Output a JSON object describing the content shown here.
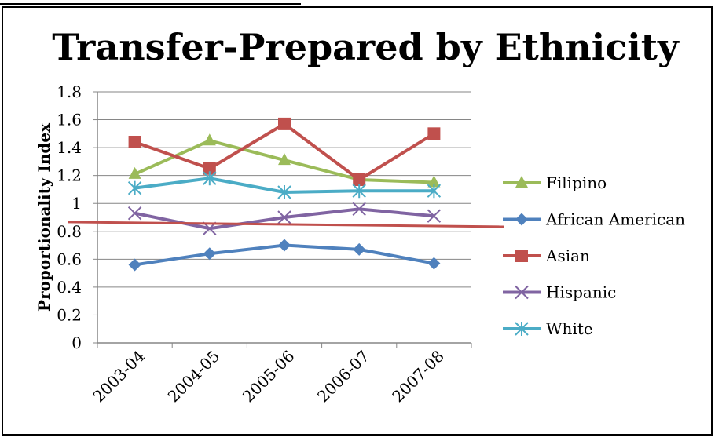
{
  "chart_data": {
    "type": "line",
    "title": "Transfer-Prepared by Ethnicity",
    "xlabel": "",
    "ylabel": "Proportionality Index",
    "categories": [
      "2003-04",
      "2004-05",
      "2005-06",
      "2006-07",
      "2007-08"
    ],
    "yticks": [
      "0",
      "0.2",
      "0.4",
      "0.6",
      "0.8",
      "1",
      "1.2",
      "1.4",
      "1.6",
      "1.8"
    ],
    "ylim": [
      0,
      1.8
    ],
    "grid": true,
    "legend_position": "right",
    "series": [
      {
        "name": "Filipino",
        "values": [
          1.21,
          1.45,
          1.31,
          1.17,
          1.15
        ],
        "color": "#9BBB59",
        "marker": "triangle"
      },
      {
        "name": "African American",
        "values": [
          0.56,
          0.64,
          0.7,
          0.67,
          0.57
        ],
        "color": "#4F81BD",
        "marker": "diamond"
      },
      {
        "name": "Asian",
        "values": [
          1.44,
          1.25,
          1.57,
          1.17,
          1.5
        ],
        "color": "#C0504D",
        "marker": "square"
      },
      {
        "name": "Hispanic",
        "values": [
          0.93,
          0.82,
          0.9,
          0.96,
          0.91
        ],
        "color": "#8064A2",
        "marker": "x"
      },
      {
        "name": "White",
        "values": [
          1.11,
          1.18,
          1.08,
          1.09,
          1.09
        ],
        "color": "#4BACC6",
        "marker": "star"
      }
    ],
    "annotations": [
      {
        "type": "reference-line",
        "value": 0.85,
        "color": "#C0504D"
      }
    ],
    "gridline_color": "#868686",
    "axis_color": "#868686"
  }
}
